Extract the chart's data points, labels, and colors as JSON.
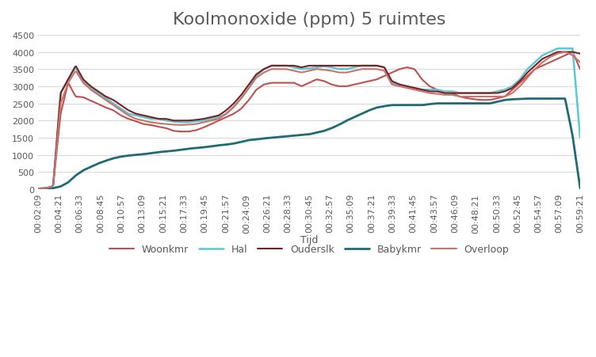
{
  "title": "Koolmonoxide (ppm) 5 ruimtes",
  "xlabel": "Tijd",
  "ylim": [
    0,
    4500
  ],
  "yticks": [
    0,
    500,
    1000,
    1500,
    2000,
    2500,
    3000,
    3500,
    4000,
    4500
  ],
  "xtick_labels": [
    "00:02:09",
    "00:04:21",
    "00:06:33",
    "00:08:45",
    "00:10:57",
    "00:13:09",
    "00:15:21",
    "00:17:33",
    "00:19:45",
    "00:21:57",
    "00:24:09",
    "00:26:21",
    "00:28:33",
    "00:30:45",
    "00:32:57",
    "00:35:09",
    "00:37:21",
    "00:39:33",
    "00:41:45",
    "00:43:57",
    "00:46:09",
    "00:48:21",
    "00:50:33",
    "00:52:45",
    "00:54:57",
    "00:57:09",
    "00:59:21"
  ],
  "legend_labels": [
    "Woonkmr",
    "Hal",
    "Ouderslk",
    "Babykmr",
    "Overloop"
  ],
  "line_colors": [
    "#C0504D",
    "#5BC8D5",
    "#7B2020",
    "#1F6B75",
    "#C9736B"
  ],
  "line_widths": [
    1.5,
    1.8,
    1.5,
    2.0,
    1.5
  ],
  "background_color": "#FFFFFF",
  "grid_color": "#D9D9D9",
  "title_fontsize": 16,
  "legend_fontsize": 9,
  "tick_fontsize": 8,
  "title_color": "#595959",
  "tick_label_color": "#595959",
  "series": {
    "Woonkmr": [
      20,
      30,
      80,
      2200,
      3100,
      2700,
      2680,
      2580,
      2480,
      2380,
      2300,
      2150,
      2050,
      1980,
      1900,
      1870,
      1820,
      1780,
      1700,
      1680,
      1680,
      1720,
      1800,
      1900,
      2000,
      2100,
      2200,
      2350,
      2600,
      2900,
      3050,
      3100,
      3100,
      3100,
      3100,
      3000,
      3100,
      3200,
      3150,
      3050,
      3000,
      3000,
      3050,
      3100,
      3150,
      3200,
      3300,
      3400,
      3500,
      3550,
      3500,
      3200,
      3000,
      2900,
      2800,
      2800,
      2700,
      2650,
      2620,
      2600,
      2600,
      2650,
      2700,
      2900,
      3100,
      3300,
      3500,
      3600,
      3700,
      3800,
      3900,
      4000,
      3500
    ],
    "Hal": [
      20,
      30,
      80,
      2800,
      3200,
      3550,
      3150,
      2950,
      2800,
      2650,
      2500,
      2350,
      2200,
      2150,
      2100,
      2050,
      2050,
      2000,
      1970,
      1950,
      1950,
      1980,
      2000,
      2050,
      2100,
      2200,
      2400,
      2650,
      2950,
      3300,
      3500,
      3600,
      3600,
      3600,
      3550,
      3500,
      3520,
      3550,
      3580,
      3550,
      3500,
      3500,
      3550,
      3600,
      3600,
      3600,
      3550,
      3100,
      3050,
      3000,
      2950,
      2900,
      2900,
      2900,
      2850,
      2850,
      2800,
      2800,
      2800,
      2800,
      2800,
      2850,
      2900,
      3000,
      3200,
      3500,
      3700,
      3900,
      4000,
      4100,
      4100,
      4100,
      1500
    ],
    "Ouderslk": [
      20,
      30,
      80,
      2800,
      3200,
      3600,
      3200,
      3000,
      2850,
      2700,
      2600,
      2450,
      2300,
      2200,
      2150,
      2100,
      2050,
      2050,
      2000,
      2000,
      2000,
      2020,
      2050,
      2100,
      2150,
      2300,
      2500,
      2750,
      3050,
      3350,
      3500,
      3600,
      3600,
      3600,
      3600,
      3550,
      3600,
      3600,
      3600,
      3600,
      3600,
      3600,
      3600,
      3600,
      3600,
      3600,
      3550,
      3150,
      3050,
      3000,
      2950,
      2900,
      2850,
      2850,
      2800,
      2800,
      2800,
      2800,
      2800,
      2800,
      2800,
      2800,
      2850,
      2950,
      3150,
      3400,
      3600,
      3800,
      3900,
      4000,
      4000,
      4000,
      3950
    ],
    "Babykmr": [
      10,
      15,
      30,
      80,
      200,
      400,
      550,
      650,
      750,
      830,
      900,
      950,
      980,
      1000,
      1020,
      1050,
      1080,
      1100,
      1120,
      1150,
      1180,
      1200,
      1220,
      1250,
      1280,
      1300,
      1330,
      1380,
      1430,
      1450,
      1480,
      1500,
      1520,
      1540,
      1560,
      1580,
      1600,
      1650,
      1700,
      1780,
      1880,
      2000,
      2100,
      2200,
      2300,
      2380,
      2420,
      2450,
      2450,
      2450,
      2450,
      2450,
      2480,
      2500,
      2500,
      2500,
      2500,
      2500,
      2500,
      2500,
      2500,
      2550,
      2600,
      2620,
      2630,
      2640,
      2640,
      2640,
      2640,
      2640,
      2640,
      1550,
      30
    ],
    "Overloop": [
      20,
      30,
      80,
      2500,
      3100,
      3450,
      3100,
      2900,
      2750,
      2600,
      2450,
      2300,
      2150,
      2050,
      2000,
      1950,
      1920,
      1900,
      1880,
      1870,
      1880,
      1900,
      1950,
      2000,
      2050,
      2200,
      2400,
      2650,
      2950,
      3250,
      3400,
      3500,
      3500,
      3500,
      3450,
      3400,
      3450,
      3500,
      3480,
      3450,
      3400,
      3400,
      3450,
      3500,
      3500,
      3500,
      3450,
      3050,
      3000,
      2950,
      2900,
      2850,
      2800,
      2780,
      2750,
      2750,
      2700,
      2700,
      2700,
      2700,
      2700,
      2700,
      2700,
      2800,
      3000,
      3250,
      3500,
      3700,
      3850,
      3950,
      4000,
      3900,
      3700
    ]
  }
}
